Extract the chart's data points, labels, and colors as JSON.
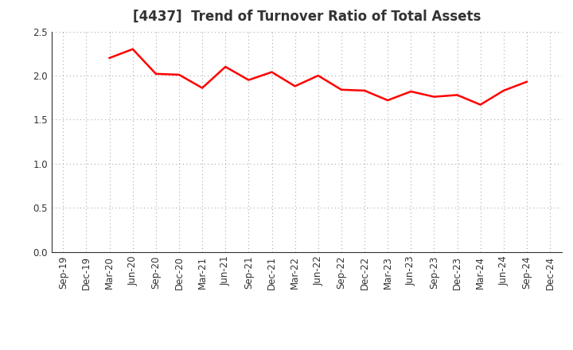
{
  "title": "[4437]  Trend of Turnover Ratio of Total Assets",
  "x_labels": [
    "Sep-19",
    "Dec-19",
    "Mar-20",
    "Jun-20",
    "Sep-20",
    "Dec-20",
    "Mar-21",
    "Jun-21",
    "Sep-21",
    "Dec-21",
    "Mar-22",
    "Jun-22",
    "Sep-22",
    "Dec-22",
    "Mar-23",
    "Jun-23",
    "Sep-23",
    "Dec-23",
    "Mar-24",
    "Jun-24",
    "Sep-24",
    "Dec-24"
  ],
  "y_values": [
    null,
    null,
    2.2,
    2.3,
    2.02,
    2.01,
    1.86,
    2.1,
    1.95,
    2.04,
    1.88,
    2.0,
    1.84,
    1.83,
    1.72,
    1.82,
    1.76,
    1.78,
    1.67,
    1.83,
    1.93,
    null
  ],
  "ylim": [
    0.0,
    2.5
  ],
  "yticks": [
    0.0,
    0.5,
    1.0,
    1.5,
    2.0,
    2.5
  ],
  "line_color": "#FF0000",
  "line_width": 1.8,
  "background_color": "#FFFFFF",
  "grid_color": "#AAAAAA",
  "title_fontsize": 12,
  "title_color": "#333333",
  "tick_fontsize": 8.5,
  "tick_color": "#333333"
}
